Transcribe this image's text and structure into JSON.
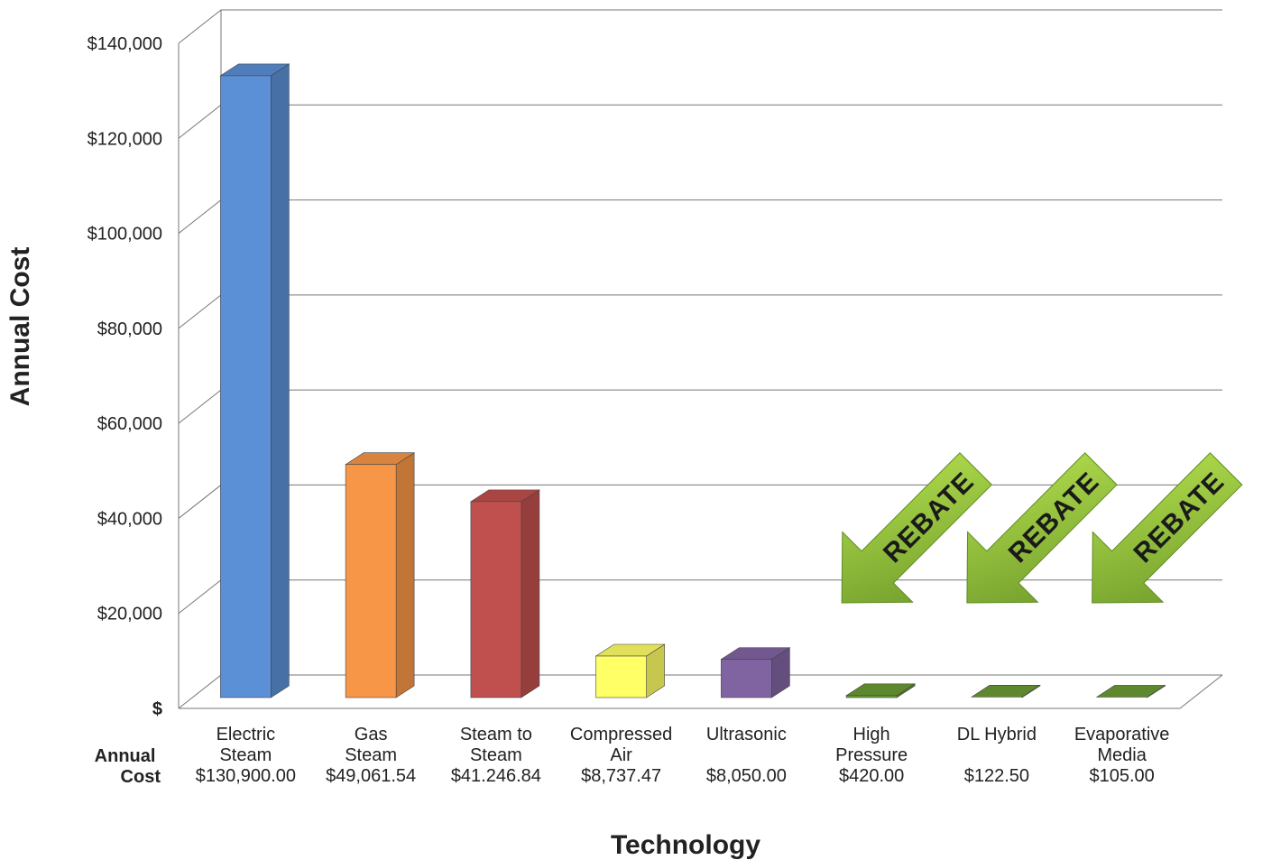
{
  "chart_data": {
    "type": "bar",
    "xlabel": "Technology",
    "ylabel": "Annual Cost",
    "row_label": "Annual\nCost",
    "ylim": [
      0,
      140000
    ],
    "yticks": [
      0,
      20000,
      40000,
      60000,
      80000,
      100000,
      120000,
      140000
    ],
    "ytick_labels": [
      "$",
      "$20,000",
      "$40,000",
      "$60,000",
      "$80,000",
      "$100,000",
      "$120,000",
      "$140,000"
    ],
    "grid": true,
    "categories": [
      {
        "label": [
          "Electric",
          "Steam"
        ],
        "value": 130900.0,
        "cost_label": "$130,900.00",
        "color": "#5b8fd6"
      },
      {
        "label": [
          "Gas",
          "Steam"
        ],
        "value": 49061.54,
        "cost_label": "$49,061.54",
        "color": "#f79646"
      },
      {
        "label": [
          "Steam to",
          "Steam"
        ],
        "value": 41246.84,
        "cost_label": "$41.246.84",
        "color": "#c0504d"
      },
      {
        "label": [
          "Compressed",
          "Air"
        ],
        "value": 8737.47,
        "cost_label": "$8,737.47",
        "color": "#ffff66"
      },
      {
        "label": [
          "Ultrasonic"
        ],
        "value": 8050.0,
        "cost_label": "$8,050.00",
        "color": "#8064a2"
      },
      {
        "label": [
          "High",
          "Pressure"
        ],
        "value": 420.0,
        "cost_label": "$420.00",
        "color": "#6a9a34"
      },
      {
        "label": [
          "DL Hybrid"
        ],
        "value": 122.5,
        "cost_label": "$122.50",
        "color": "#6a9a34"
      },
      {
        "label": [
          "Evaporative",
          "Media"
        ],
        "value": 105.0,
        "cost_label": "$105.00",
        "color": "#6a9a34"
      }
    ],
    "annotations": [
      {
        "text": "REBATE",
        "category_index": 5
      },
      {
        "text": "REBATE",
        "category_index": 6
      },
      {
        "text": "REBATE",
        "category_index": 7
      }
    ]
  }
}
